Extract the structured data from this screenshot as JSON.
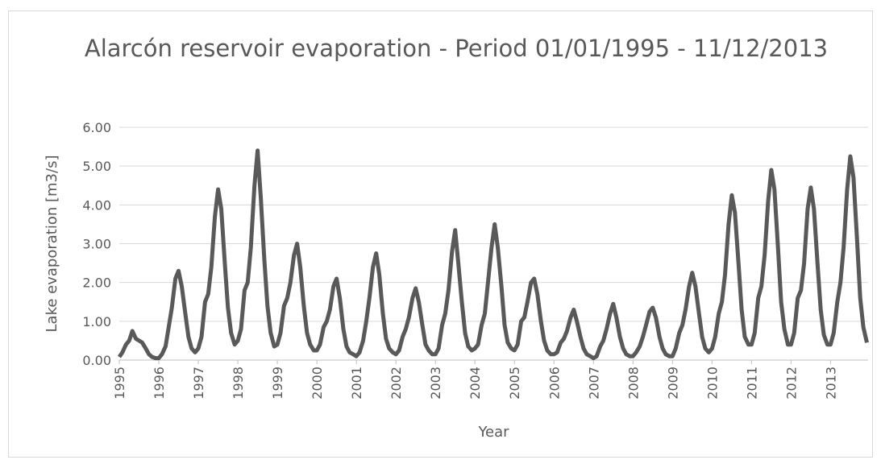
{
  "chart_data": {
    "type": "line",
    "title": "Alarcón reservoir evaporation - Period 01/01/1995 - 11/12/2013",
    "xlabel": "Year",
    "ylabel": "Lake evaporation [m3/s]",
    "xlim": [
      1995,
      2013.95
    ],
    "ylim": [
      0,
      6
    ],
    "xticks": [
      1995,
      1996,
      1997,
      1998,
      1999,
      2000,
      2001,
      2002,
      2003,
      2004,
      2005,
      2006,
      2007,
      2008,
      2009,
      2010,
      2011,
      2012,
      2013
    ],
    "yticks": [
      {
        "value": 0,
        "label": "0.00"
      },
      {
        "value": 1,
        "label": "1.00"
      },
      {
        "value": 2,
        "label": "2.00"
      },
      {
        "value": 3,
        "label": "3.00"
      },
      {
        "value": 4,
        "label": "4.00"
      },
      {
        "value": 5,
        "label": "5.00"
      },
      {
        "value": 6,
        "label": "6.00"
      }
    ],
    "grid": true,
    "series": [
      {
        "color": "#595959",
        "x": [
          1995,
          1995.08,
          1995.17,
          1995.25,
          1995.33,
          1995.42,
          1995.5,
          1995.58,
          1995.67,
          1995.75,
          1995.83,
          1995.92,
          1996,
          1996.08,
          1996.17,
          1996.25,
          1996.33,
          1996.42,
          1996.5,
          1996.58,
          1996.67,
          1996.75,
          1996.83,
          1996.92,
          1997,
          1997.08,
          1997.17,
          1997.25,
          1997.33,
          1997.42,
          1997.5,
          1997.58,
          1997.67,
          1997.75,
          1997.83,
          1997.92,
          1998,
          1998.08,
          1998.17,
          1998.25,
          1998.33,
          1998.42,
          1998.5,
          1998.58,
          1998.67,
          1998.75,
          1998.83,
          1998.92,
          1999,
          1999.08,
          1999.17,
          1999.25,
          1999.33,
          1999.42,
          1999.5,
          1999.58,
          1999.67,
          1999.75,
          1999.83,
          1999.92,
          2000,
          2000.08,
          2000.17,
          2000.25,
          2000.33,
          2000.42,
          2000.5,
          2000.58,
          2000.67,
          2000.75,
          2000.83,
          2000.92,
          2001,
          2001.08,
          2001.17,
          2001.25,
          2001.33,
          2001.42,
          2001.5,
          2001.58,
          2001.67,
          2001.75,
          2001.83,
          2001.92,
          2002,
          2002.08,
          2002.17,
          2002.25,
          2002.33,
          2002.42,
          2002.5,
          2002.58,
          2002.67,
          2002.75,
          2002.83,
          2002.92,
          2003,
          2003.08,
          2003.17,
          2003.25,
          2003.33,
          2003.42,
          2003.5,
          2003.58,
          2003.67,
          2003.75,
          2003.83,
          2003.92,
          2004,
          2004.08,
          2004.17,
          2004.25,
          2004.33,
          2004.42,
          2004.5,
          2004.58,
          2004.67,
          2004.75,
          2004.83,
          2004.92,
          2005,
          2005.08,
          2005.17,
          2005.25,
          2005.33,
          2005.42,
          2005.5,
          2005.58,
          2005.67,
          2005.75,
          2005.83,
          2005.92,
          2006,
          2006.08,
          2006.17,
          2006.25,
          2006.33,
          2006.42,
          2006.5,
          2006.58,
          2006.67,
          2006.75,
          2006.83,
          2006.92,
          2007,
          2007.08,
          2007.17,
          2007.25,
          2007.33,
          2007.42,
          2007.5,
          2007.58,
          2007.67,
          2007.75,
          2007.83,
          2007.92,
          2008,
          2008.08,
          2008.17,
          2008.25,
          2008.33,
          2008.42,
          2008.5,
          2008.58,
          2008.67,
          2008.75,
          2008.83,
          2008.92,
          2009,
          2009.08,
          2009.17,
          2009.25,
          2009.33,
          2009.42,
          2009.5,
          2009.58,
          2009.67,
          2009.75,
          2009.83,
          2009.92,
          2010,
          2010.08,
          2010.17,
          2010.25,
          2010.33,
          2010.42,
          2010.5,
          2010.58,
          2010.67,
          2010.75,
          2010.83,
          2010.92,
          2011,
          2011.08,
          2011.17,
          2011.25,
          2011.33,
          2011.42,
          2011.5,
          2011.58,
          2011.67,
          2011.75,
          2011.83,
          2011.92,
          2012,
          2012.08,
          2012.17,
          2012.25,
          2012.33,
          2012.42,
          2012.5,
          2012.58,
          2012.67,
          2012.75,
          2012.83,
          2012.92,
          2013,
          2013.08,
          2013.17,
          2013.25,
          2013.33,
          2013.42,
          2013.5,
          2013.58,
          2013.67,
          2013.75,
          2013.83,
          2013.92
        ],
        "values": [
          0.08,
          0.2,
          0.4,
          0.5,
          0.75,
          0.55,
          0.5,
          0.45,
          0.3,
          0.15,
          0.08,
          0.05,
          0.05,
          0.15,
          0.35,
          0.85,
          1.35,
          2.1,
          2.3,
          1.9,
          1.2,
          0.6,
          0.3,
          0.2,
          0.3,
          0.6,
          1.5,
          1.7,
          2.4,
          3.7,
          4.4,
          3.9,
          2.5,
          1.35,
          0.7,
          0.4,
          0.5,
          0.8,
          1.8,
          2.0,
          2.9,
          4.5,
          5.4,
          4.2,
          2.6,
          1.4,
          0.7,
          0.35,
          0.4,
          0.7,
          1.4,
          1.6,
          2.0,
          2.7,
          3.0,
          2.4,
          1.4,
          0.7,
          0.4,
          0.25,
          0.25,
          0.4,
          0.85,
          1.0,
          1.3,
          1.9,
          2.1,
          1.6,
          0.8,
          0.35,
          0.2,
          0.15,
          0.1,
          0.2,
          0.5,
          1.0,
          1.6,
          2.4,
          2.75,
          2.2,
          1.2,
          0.55,
          0.3,
          0.2,
          0.15,
          0.25,
          0.6,
          0.8,
          1.1,
          1.6,
          1.85,
          1.5,
          0.9,
          0.4,
          0.25,
          0.15,
          0.15,
          0.3,
          0.9,
          1.2,
          1.8,
          2.8,
          3.35,
          2.5,
          1.5,
          0.7,
          0.35,
          0.25,
          0.3,
          0.4,
          0.9,
          1.2,
          2.0,
          2.9,
          3.5,
          2.9,
          1.9,
          0.9,
          0.45,
          0.3,
          0.25,
          0.4,
          1.0,
          1.1,
          1.5,
          2.0,
          2.1,
          1.7,
          1.0,
          0.5,
          0.25,
          0.15,
          0.15,
          0.2,
          0.45,
          0.55,
          0.75,
          1.1,
          1.3,
          1.0,
          0.6,
          0.3,
          0.15,
          0.1,
          0.05,
          0.1,
          0.35,
          0.5,
          0.8,
          1.2,
          1.45,
          1.1,
          0.6,
          0.3,
          0.15,
          0.1,
          0.1,
          0.2,
          0.35,
          0.6,
          0.9,
          1.25,
          1.35,
          1.1,
          0.6,
          0.3,
          0.15,
          0.1,
          0.1,
          0.3,
          0.7,
          0.9,
          1.3,
          1.9,
          2.25,
          1.9,
          1.2,
          0.6,
          0.3,
          0.2,
          0.3,
          0.6,
          1.2,
          1.5,
          2.2,
          3.5,
          4.25,
          3.8,
          2.5,
          1.3,
          0.6,
          0.4,
          0.4,
          0.7,
          1.6,
          1.9,
          2.7,
          4.1,
          4.9,
          4.4,
          2.9,
          1.5,
          0.8,
          0.4,
          0.4,
          0.7,
          1.6,
          1.8,
          2.5,
          3.9,
          4.45,
          3.9,
          2.5,
          1.3,
          0.65,
          0.4,
          0.4,
          0.7,
          1.5,
          2.0,
          2.9,
          4.4,
          5.25,
          4.7,
          3.1,
          1.6,
          0.85,
          0.45
        ]
      }
    ]
  }
}
